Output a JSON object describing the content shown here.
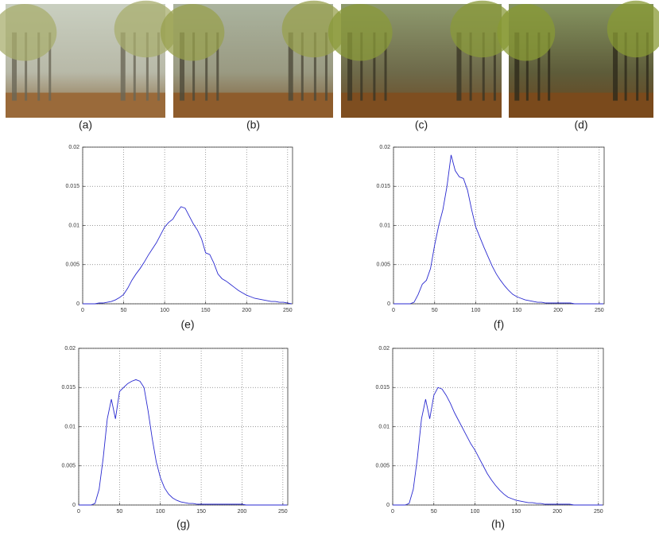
{
  "images": [
    {
      "label": "(a)"
    },
    {
      "label": "(b)"
    },
    {
      "label": "(c)"
    },
    {
      "label": "(d)"
    }
  ],
  "chart_data": [
    {
      "type": "line",
      "label": "(e)",
      "color": "#2a2ad0",
      "grid": true,
      "xlim": [
        0,
        256
      ],
      "ylim": [
        0,
        0.02
      ],
      "xticks": [
        0,
        50,
        100,
        150,
        200,
        250
      ],
      "yticks": [
        0,
        0.005,
        0.01,
        0.015,
        0.02
      ],
      "x": [
        0,
        5,
        10,
        15,
        20,
        25,
        30,
        35,
        40,
        45,
        50,
        55,
        60,
        65,
        70,
        75,
        80,
        85,
        90,
        95,
        100,
        105,
        110,
        115,
        120,
        125,
        130,
        135,
        140,
        145,
        150,
        155,
        160,
        165,
        170,
        175,
        180,
        185,
        190,
        195,
        200,
        205,
        210,
        215,
        220,
        225,
        230,
        235,
        240,
        245,
        250,
        255
      ],
      "values": [
        0,
        0,
        0,
        0,
        0.0001,
        0.0001,
        0.0002,
        0.0003,
        0.0005,
        0.0008,
        0.0012,
        0.002,
        0.003,
        0.0038,
        0.0045,
        0.0053,
        0.0062,
        0.007,
        0.0078,
        0.0088,
        0.0098,
        0.0104,
        0.0108,
        0.0117,
        0.0124,
        0.0122,
        0.0112,
        0.0102,
        0.0094,
        0.0083,
        0.0065,
        0.0063,
        0.0052,
        0.0038,
        0.0032,
        0.0029,
        0.0025,
        0.0021,
        0.0017,
        0.0014,
        0.0011,
        0.0009,
        0.0007,
        0.0006,
        0.0005,
        0.0004,
        0.0003,
        0.0003,
        0.0002,
        0.0002,
        0.0001,
        0
      ]
    },
    {
      "type": "line",
      "label": "(f)",
      "color": "#2a2ad0",
      "grid": true,
      "xlim": [
        0,
        256
      ],
      "ylim": [
        0,
        0.02
      ],
      "xticks": [
        0,
        50,
        100,
        150,
        200,
        250
      ],
      "yticks": [
        0,
        0.005,
        0.01,
        0.015,
        0.02
      ],
      "x": [
        0,
        5,
        10,
        15,
        20,
        25,
        30,
        35,
        40,
        45,
        50,
        55,
        60,
        65,
        70,
        75,
        80,
        85,
        90,
        95,
        100,
        105,
        110,
        115,
        120,
        125,
        130,
        135,
        140,
        145,
        150,
        155,
        160,
        165,
        170,
        175,
        180,
        185,
        190,
        195,
        200,
        205,
        210,
        215,
        220,
        225,
        230,
        235,
        240,
        245,
        250,
        255
      ],
      "values": [
        0,
        0,
        0,
        0,
        0,
        0.0002,
        0.0012,
        0.0025,
        0.003,
        0.0045,
        0.0075,
        0.01,
        0.012,
        0.015,
        0.019,
        0.017,
        0.0162,
        0.016,
        0.0145,
        0.012,
        0.0098,
        0.0085,
        0.0072,
        0.006,
        0.0048,
        0.0038,
        0.003,
        0.0023,
        0.0017,
        0.0012,
        0.0009,
        0.0007,
        0.0005,
        0.0004,
        0.0003,
        0.0002,
        0.0002,
        0.0001,
        0.0001,
        0.0001,
        0.0001,
        0.0001,
        0.0001,
        0.0001,
        0,
        0,
        0,
        0,
        0,
        0,
        0,
        0
      ]
    },
    {
      "type": "line",
      "label": "(g)",
      "color": "#2a2ad0",
      "grid": true,
      "xlim": [
        0,
        256
      ],
      "ylim": [
        0,
        0.02
      ],
      "xticks": [
        0,
        50,
        100,
        150,
        200,
        250
      ],
      "yticks": [
        0,
        0.005,
        0.01,
        0.015,
        0.02
      ],
      "x": [
        0,
        5,
        10,
        15,
        20,
        25,
        30,
        35,
        40,
        45,
        50,
        55,
        60,
        65,
        70,
        75,
        80,
        85,
        90,
        95,
        100,
        105,
        110,
        115,
        120,
        125,
        130,
        135,
        140,
        145,
        150,
        155,
        160,
        165,
        170,
        175,
        180,
        185,
        190,
        195,
        200,
        205,
        210,
        215,
        220,
        225,
        230,
        235,
        240,
        245,
        250,
        255
      ],
      "values": [
        0,
        0,
        0,
        0,
        0.0002,
        0.002,
        0.006,
        0.011,
        0.0135,
        0.011,
        0.0145,
        0.015,
        0.0155,
        0.0158,
        0.016,
        0.0158,
        0.015,
        0.012,
        0.0085,
        0.0055,
        0.0035,
        0.0022,
        0.0014,
        0.0009,
        0.0006,
        0.0004,
        0.0003,
        0.0002,
        0.0002,
        0.0001,
        0.0001,
        0.0001,
        0.0001,
        0.0001,
        0.0001,
        0.0001,
        0.0001,
        0.0001,
        0.0001,
        0.0001,
        0.0001,
        0,
        0,
        0,
        0,
        0,
        0,
        0,
        0,
        0,
        0,
        0
      ]
    },
    {
      "type": "line",
      "label": "(h)",
      "color": "#2a2ad0",
      "grid": true,
      "xlim": [
        0,
        256
      ],
      "ylim": [
        0,
        0.02
      ],
      "xticks": [
        0,
        50,
        100,
        150,
        200,
        250
      ],
      "yticks": [
        0,
        0.005,
        0.01,
        0.015,
        0.02
      ],
      "x": [
        0,
        5,
        10,
        15,
        20,
        25,
        30,
        35,
        40,
        45,
        50,
        55,
        60,
        65,
        70,
        75,
        80,
        85,
        90,
        95,
        100,
        105,
        110,
        115,
        120,
        125,
        130,
        135,
        140,
        145,
        150,
        155,
        160,
        165,
        170,
        175,
        180,
        185,
        190,
        195,
        200,
        205,
        210,
        215,
        220,
        225,
        230,
        235,
        240,
        245,
        250,
        255
      ],
      "values": [
        0,
        0,
        0,
        0,
        0.0002,
        0.002,
        0.006,
        0.011,
        0.0135,
        0.011,
        0.014,
        0.015,
        0.0148,
        0.014,
        0.013,
        0.0118,
        0.0108,
        0.0098,
        0.0088,
        0.0078,
        0.007,
        0.006,
        0.005,
        0.004,
        0.0032,
        0.0025,
        0.0019,
        0.0014,
        0.001,
        0.0008,
        0.0006,
        0.0005,
        0.0004,
        0.0003,
        0.0003,
        0.0002,
        0.0002,
        0.0001,
        0.0001,
        0.0001,
        0.0001,
        0.0001,
        0.0001,
        0.0001,
        0,
        0,
        0,
        0,
        0,
        0,
        0,
        0
      ]
    }
  ]
}
